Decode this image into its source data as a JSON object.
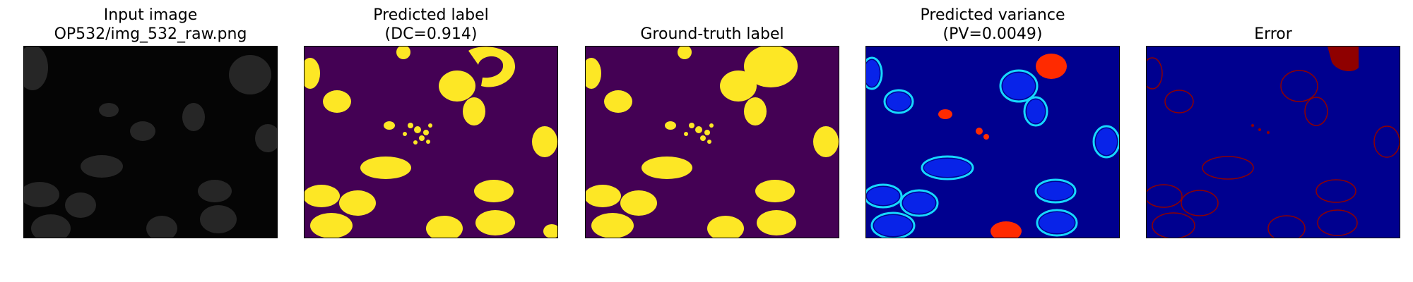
{
  "panels": [
    {
      "title_line1": "Input image",
      "title_line2": "OP532/img_532_raw.png"
    },
    {
      "title_line1": "Predicted label",
      "title_line2": "(DC=0.914)"
    },
    {
      "title_line1": "",
      "title_line2": "Ground-truth label"
    },
    {
      "title_line1": "Predicted variance",
      "title_line2": "(PV=0.0049)"
    },
    {
      "title_line1": "",
      "title_line2": "Error"
    }
  ],
  "colors": {
    "input_background": "#050505",
    "input_blob": "#2a2a2a",
    "label_background": "#440154",
    "label_foreground": "#fde725",
    "jet_background": "#00008f",
    "jet_low": "#0a2cff",
    "jet_mid": "#16d8ff",
    "jet_high": "#ff2a00",
    "error_background": "#00008f",
    "error_foreground": "#8f0000"
  }
}
